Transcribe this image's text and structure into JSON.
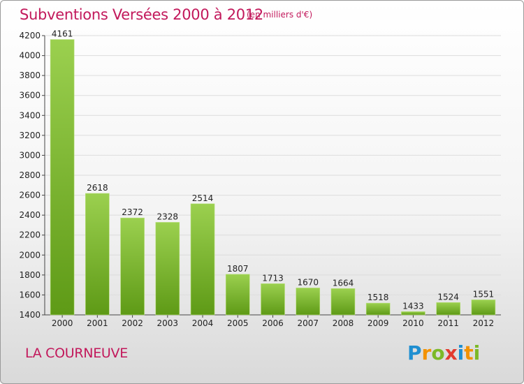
{
  "colors": {
    "accent": "#c2185b",
    "bar_top": "#9bd04f",
    "bar_bottom": "#5e9a16",
    "grid": "#dcdcdc",
    "axis_text": "#222222"
  },
  "header": {
    "title": "Subventions Versées 2000 à 2012",
    "unit": "(en milliers d'€)"
  },
  "footer": {
    "city": "LA COURNEUVE",
    "logo": {
      "letters": [
        "P",
        "r",
        "o",
        "x",
        "i",
        "t",
        "i"
      ],
      "colors": [
        "#1f8fd1",
        "#f39200",
        "#7cb927",
        "#e23b2f",
        "#1f8fd1",
        "#f39200",
        "#7cb927"
      ]
    }
  },
  "chart_data": {
    "type": "bar",
    "title": "Subventions Versées 2000 à 2012",
    "xlabel": "",
    "ylabel": "",
    "categories": [
      "2000",
      "2001",
      "2002",
      "2003",
      "2004",
      "2005",
      "2006",
      "2007",
      "2008",
      "2009",
      "2010",
      "2011",
      "2012"
    ],
    "values": [
      4161,
      2618,
      2372,
      2328,
      2514,
      1807,
      1713,
      1670,
      1664,
      1518,
      1433,
      1524,
      1551
    ],
    "ylim": [
      1400,
      4200
    ],
    "yticks": [
      1400,
      1600,
      1800,
      2000,
      2200,
      2400,
      2600,
      2800,
      3000,
      3200,
      3400,
      3600,
      3800,
      4000,
      4200
    ],
    "grid": true,
    "legend": "none"
  }
}
